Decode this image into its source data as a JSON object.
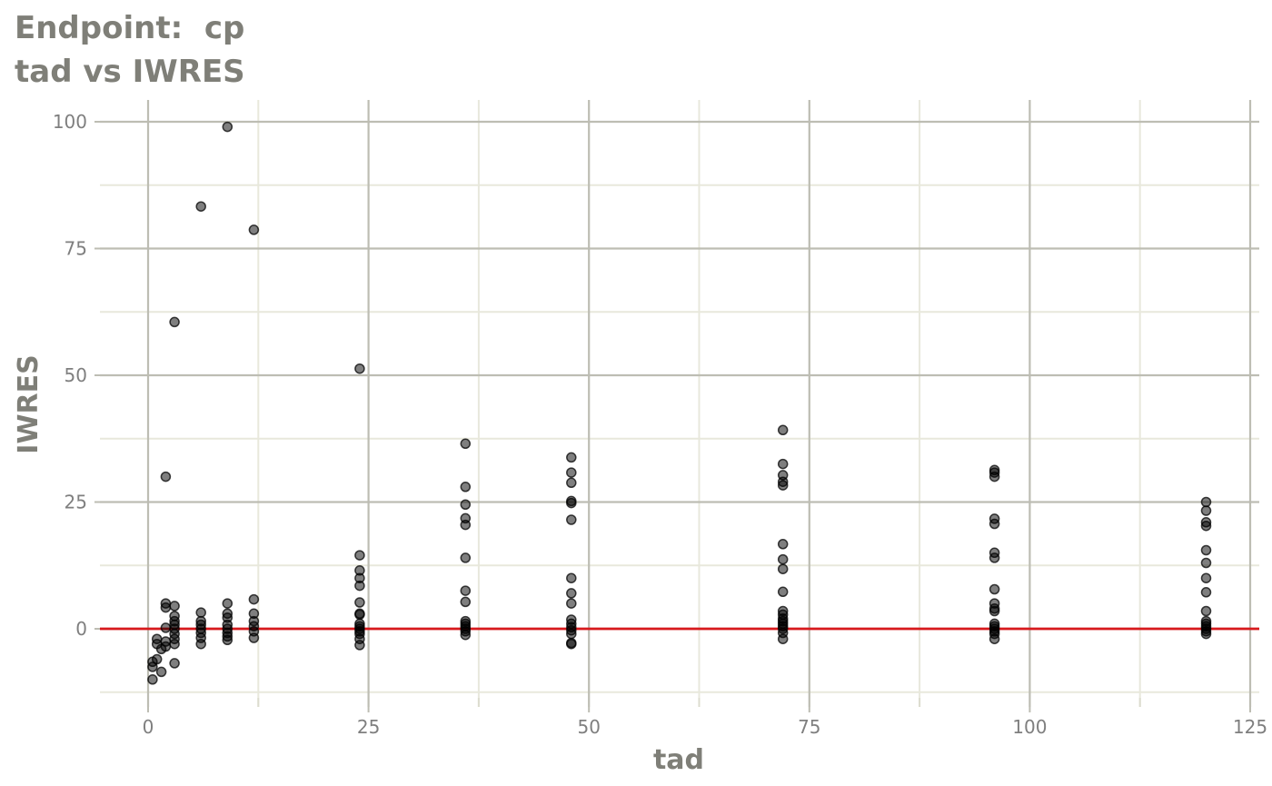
{
  "title": {
    "line1": "Endpoint:  cp",
    "line2": "tad vs IWRES"
  },
  "chart_data": {
    "type": "scatter",
    "xlabel": "tad",
    "ylabel": "IWRES",
    "xlim": [
      -11,
      126
    ],
    "ylim": [
      -15,
      102
    ],
    "x_ticks": [
      0,
      25,
      50,
      75,
      100,
      125
    ],
    "y_ticks": [
      0,
      25,
      50,
      75,
      100
    ],
    "grid": true,
    "reference_line": {
      "y": 0,
      "color": "#d7191c"
    },
    "point_color": "#000000",
    "point_opacity": 0.5,
    "series": [
      {
        "points": [
          [
            0.5,
            -10.0
          ],
          [
            0.5,
            -7.5
          ],
          [
            0.5,
            -6.5
          ],
          [
            1,
            -6.0
          ],
          [
            1,
            -3.0
          ],
          [
            1,
            -2.0
          ],
          [
            1.5,
            -8.5
          ],
          [
            1.5,
            -4.0
          ],
          [
            2,
            30.0
          ],
          [
            2,
            5.0
          ],
          [
            2,
            4.2
          ],
          [
            2,
            0.2
          ],
          [
            2,
            -2.5
          ],
          [
            2,
            -3.5
          ],
          [
            3,
            60.5
          ],
          [
            3,
            4.5
          ],
          [
            3,
            2.5
          ],
          [
            3,
            1.5
          ],
          [
            3,
            0.8
          ],
          [
            3,
            0
          ],
          [
            3,
            -1.0
          ],
          [
            3,
            -2.0
          ],
          [
            3,
            -3.0
          ],
          [
            3,
            -6.8
          ],
          [
            6,
            83.3
          ],
          [
            6,
            3.2
          ],
          [
            6,
            1.5
          ],
          [
            6,
            0.8
          ],
          [
            6,
            0
          ],
          [
            6,
            -0.8
          ],
          [
            6,
            -1.8
          ],
          [
            6,
            -3.0
          ],
          [
            9,
            99.0
          ],
          [
            9,
            5.0
          ],
          [
            9,
            3.0
          ],
          [
            9,
            2.2
          ],
          [
            9,
            0.8
          ],
          [
            9,
            0
          ],
          [
            9,
            -0.8
          ],
          [
            9,
            -1.5
          ],
          [
            9,
            -2.2
          ],
          [
            12,
            78.7
          ],
          [
            12,
            5.8
          ],
          [
            12,
            3.0
          ],
          [
            12,
            1.5
          ],
          [
            12,
            0.5
          ],
          [
            12,
            -0.5
          ],
          [
            12,
            -1.8
          ],
          [
            24,
            51.3
          ],
          [
            24,
            14.5
          ],
          [
            24,
            11.5
          ],
          [
            24,
            10.0
          ],
          [
            24,
            8.5
          ],
          [
            24,
            5.2
          ],
          [
            24,
            3.0
          ],
          [
            24,
            2.8
          ],
          [
            24,
            1.0
          ],
          [
            24,
            0.5
          ],
          [
            24,
            0
          ],
          [
            24,
            -0.5
          ],
          [
            24,
            -1.0
          ],
          [
            24,
            -2.0
          ],
          [
            24,
            -3.2
          ],
          [
            36,
            36.5
          ],
          [
            36,
            28.0
          ],
          [
            36,
            24.5
          ],
          [
            36,
            21.8
          ],
          [
            36,
            20.5
          ],
          [
            36,
            14.0
          ],
          [
            36,
            7.5
          ],
          [
            36,
            5.3
          ],
          [
            36,
            1.5
          ],
          [
            36,
            1.0
          ],
          [
            36,
            0.5
          ],
          [
            36,
            0
          ],
          [
            36,
            -0.5
          ],
          [
            36,
            -1.2
          ],
          [
            48,
            33.8
          ],
          [
            48,
            30.8
          ],
          [
            48,
            28.8
          ],
          [
            48,
            25.2
          ],
          [
            48,
            24.8
          ],
          [
            48,
            21.5
          ],
          [
            48,
            10.0
          ],
          [
            48,
            7.0
          ],
          [
            48,
            5.0
          ],
          [
            48,
            1.8
          ],
          [
            48,
            1.0
          ],
          [
            48,
            0.3
          ],
          [
            48,
            -0.3
          ],
          [
            48,
            -1.0
          ],
          [
            48,
            -3.0
          ],
          [
            48,
            -2.8
          ],
          [
            72,
            39.2
          ],
          [
            72,
            32.5
          ],
          [
            72,
            30.3
          ],
          [
            72,
            29.0
          ],
          [
            72,
            28.3
          ],
          [
            72,
            16.7
          ],
          [
            72,
            13.7
          ],
          [
            72,
            11.8
          ],
          [
            72,
            7.3
          ],
          [
            72,
            3.5
          ],
          [
            72,
            2.8
          ],
          [
            72,
            2.0
          ],
          [
            72,
            1.5
          ],
          [
            72,
            1.0
          ],
          [
            72,
            0.5
          ],
          [
            72,
            0
          ],
          [
            72,
            -0.8
          ],
          [
            72,
            -2.0
          ],
          [
            96,
            31.3
          ],
          [
            96,
            30.8
          ],
          [
            96,
            30.0
          ],
          [
            96,
            21.7
          ],
          [
            96,
            20.7
          ],
          [
            96,
            15.0
          ],
          [
            96,
            14.0
          ],
          [
            96,
            7.8
          ],
          [
            96,
            5.0
          ],
          [
            96,
            4.0
          ],
          [
            96,
            3.5
          ],
          [
            96,
            1.0
          ],
          [
            96,
            0.5
          ],
          [
            96,
            0
          ],
          [
            96,
            -0.5
          ],
          [
            96,
            -1.0
          ],
          [
            96,
            -2.0
          ],
          [
            120,
            25.0
          ],
          [
            120,
            23.3
          ],
          [
            120,
            21.0
          ],
          [
            120,
            20.3
          ],
          [
            120,
            15.5
          ],
          [
            120,
            13.0
          ],
          [
            120,
            10.0
          ],
          [
            120,
            7.2
          ],
          [
            120,
            3.5
          ],
          [
            120,
            1.5
          ],
          [
            120,
            1.0
          ],
          [
            120,
            0.5
          ],
          [
            120,
            0
          ],
          [
            120,
            -0.5
          ],
          [
            120,
            -1.0
          ]
        ]
      }
    ]
  }
}
